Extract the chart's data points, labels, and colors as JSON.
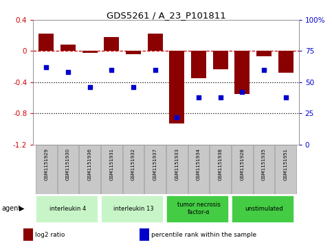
{
  "title": "GDS5261 / A_23_P101811",
  "samples": [
    "GSM1151929",
    "GSM1151930",
    "GSM1151936",
    "GSM1151931",
    "GSM1151932",
    "GSM1151937",
    "GSM1151933",
    "GSM1151934",
    "GSM1151938",
    "GSM1151928",
    "GSM1151935",
    "GSM1151951"
  ],
  "log2_ratio": [
    0.22,
    0.08,
    -0.02,
    0.18,
    -0.04,
    0.22,
    -0.93,
    -0.35,
    -0.23,
    -0.55,
    -0.07,
    -0.28
  ],
  "percentile": [
    62,
    58,
    46,
    60,
    46,
    60,
    22,
    38,
    38,
    42,
    60,
    38
  ],
  "bar_color": "#8B0000",
  "dot_color": "#0000CD",
  "groups": [
    {
      "label": "interleukin 4",
      "start": 0,
      "end": 3,
      "color": "#c8f5c8"
    },
    {
      "label": "interleukin 13",
      "start": 3,
      "end": 6,
      "color": "#c8f5c8"
    },
    {
      "label": "tumor necrosis\nfactor-α",
      "start": 6,
      "end": 9,
      "color": "#44cc44"
    },
    {
      "label": "unstimulated",
      "start": 9,
      "end": 12,
      "color": "#44cc44"
    }
  ],
  "ylim": [
    -1.2,
    0.4
  ],
  "yticks": [
    -1.2,
    -0.8,
    -0.4,
    0.0,
    0.4
  ],
  "ytick_labels_left": [
    "-1.2",
    "-0.8",
    "-0.4",
    "0",
    "0.4"
  ],
  "ytick_labels_right": [
    "0",
    "25",
    "50",
    "75",
    "100%"
  ],
  "hline_positions": [
    0.0,
    -0.4,
    -0.8
  ],
  "hline_styles": [
    "--",
    ":",
    ":"
  ],
  "hline_colors": [
    "#cc0000",
    "#000000",
    "#000000"
  ],
  "sample_box_color": "#c8c8c8",
  "sample_box_edge": "#999999",
  "legend_items": [
    {
      "label": "log2 ratio",
      "color": "#8B0000"
    },
    {
      "label": "percentile rank within the sample",
      "color": "#0000CD"
    }
  ]
}
